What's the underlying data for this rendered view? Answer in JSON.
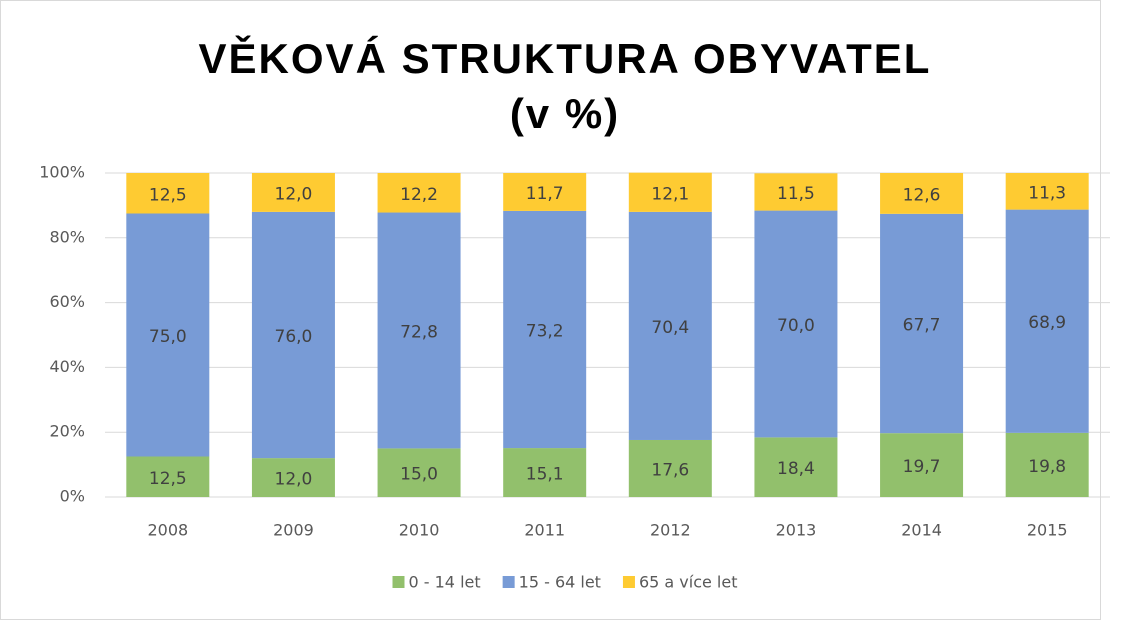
{
  "chart_data": {
    "type": "stacked_bar",
    "title": "VĚKOVÁ STRUKTURA OBYVATEL",
    "subtitle": "(v %)",
    "categories": [
      "2008",
      "2009",
      "2010",
      "2011",
      "2012",
      "2013",
      "2014",
      "2015"
    ],
    "series": [
      {
        "name": "0 - 14 let",
        "color": "#92c06c",
        "values": [
          12.5,
          12.0,
          15.0,
          15.1,
          17.6,
          18.4,
          19.7,
          19.8
        ],
        "value_labels": [
          "12,5",
          "12,0",
          "15,0",
          "15,1",
          "17,6",
          "18,4",
          "19,7",
          "19,8"
        ]
      },
      {
        "name": "15 - 64 let",
        "color": "#789bd6",
        "values": [
          75.0,
          76.0,
          72.8,
          73.2,
          70.4,
          70.0,
          67.7,
          68.9
        ],
        "value_labels": [
          "75,0",
          "76,0",
          "72,8",
          "73,2",
          "70,4",
          "70,0",
          "67,7",
          "68,9"
        ]
      },
      {
        "name": "65 a více let",
        "color": "#fecb32",
        "values": [
          12.5,
          12.0,
          12.2,
          11.7,
          12.1,
          11.5,
          12.6,
          11.3
        ],
        "value_labels": [
          "12,5",
          "12,0",
          "12,2",
          "11,7",
          "12,1",
          "11,5",
          "12,6",
          "11,3"
        ]
      }
    ],
    "ylim": [
      0,
      100
    ],
    "yticks": [
      {
        "value": 0,
        "label": "0%"
      },
      {
        "value": 20,
        "label": "20%"
      },
      {
        "value": 40,
        "label": "40%"
      },
      {
        "value": 60,
        "label": "60%"
      },
      {
        "value": 80,
        "label": "80%"
      },
      {
        "value": 100,
        "label": "100%"
      }
    ],
    "grid": true,
    "legend": "bottom"
  }
}
